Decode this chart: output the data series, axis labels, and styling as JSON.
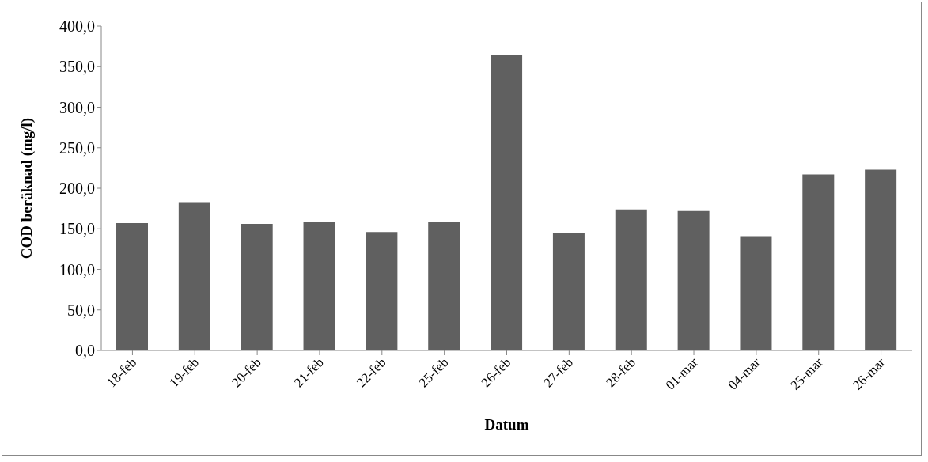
{
  "chart_data": {
    "type": "bar",
    "xlabel": "Datum",
    "ylabel": "COD beräknad (mg/l)",
    "categories": [
      "18-feb",
      "19-feb",
      "20-feb",
      "21-feb",
      "22-feb",
      "25-feb",
      "26-feb",
      "27-feb",
      "28-feb",
      "01-mar",
      "04-mar",
      "25-mar",
      "26-mar"
    ],
    "values": [
      157,
      183,
      156,
      158,
      146,
      159,
      365,
      145,
      174,
      172,
      141,
      217,
      223
    ],
    "color": "#606060",
    "ylim": [
      0,
      400
    ],
    "yticks": [
      {
        "value": 0,
        "label": "0,0"
      },
      {
        "value": 50,
        "label": "50,0"
      },
      {
        "value": 100,
        "label": "100,0"
      },
      {
        "value": 150,
        "label": "150,0"
      },
      {
        "value": 200,
        "label": "200,0"
      },
      {
        "value": 250,
        "label": "250,0"
      },
      {
        "value": 300,
        "label": "300,0"
      },
      {
        "value": 350,
        "label": "350,0"
      },
      {
        "value": 400,
        "label": "400,0"
      }
    ],
    "grid": false,
    "legend": false
  }
}
